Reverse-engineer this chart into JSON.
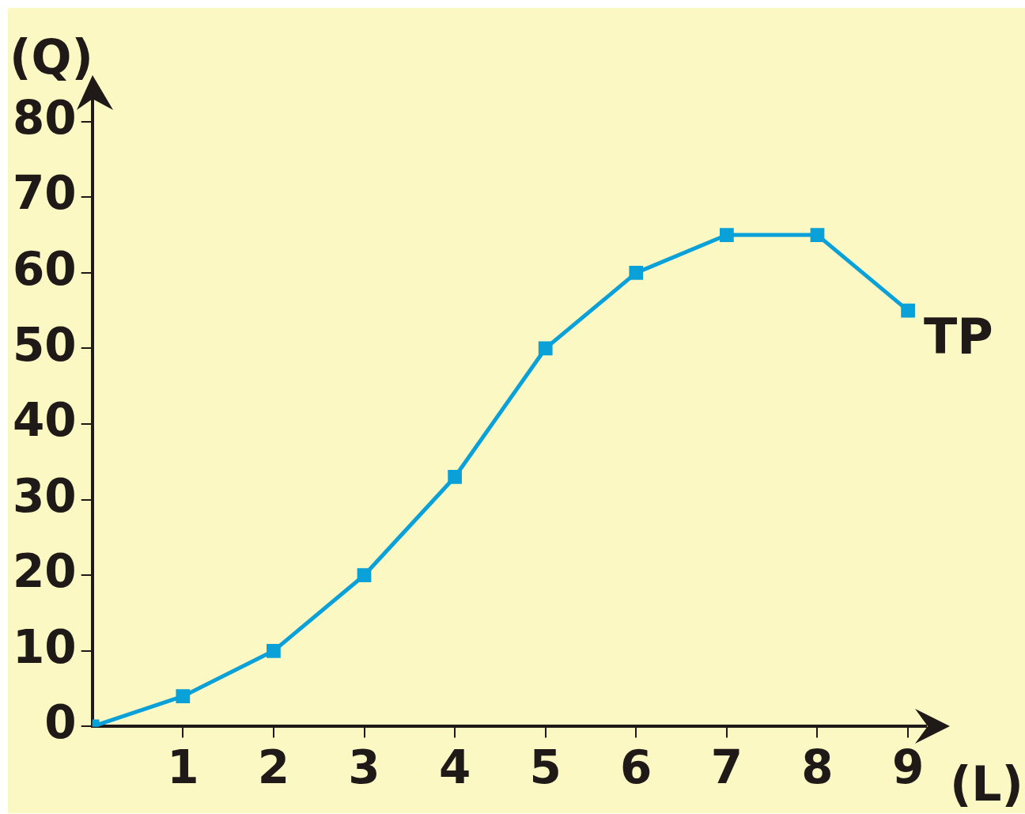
{
  "chart_data": {
    "type": "line",
    "xlabel": "(L)",
    "ylabel": "(Q)",
    "x": [
      0,
      1,
      2,
      3,
      4,
      5,
      6,
      7,
      8,
      9
    ],
    "series": [
      {
        "name": "TP",
        "color": "#0aa0d8",
        "values": [
          0,
          4,
          10,
          20,
          33,
          50,
          60,
          65,
          65,
          55
        ]
      }
    ],
    "xlim": [
      0,
      9.2
    ],
    "xticks": [
      1,
      2,
      3,
      4,
      5,
      6,
      7,
      8,
      9
    ],
    "ylim": [
      0,
      83
    ],
    "yticks": [
      0,
      10,
      20,
      30,
      40,
      50,
      60,
      70,
      80
    ],
    "marker": "square",
    "line_style": "solid",
    "legend": false
  }
}
